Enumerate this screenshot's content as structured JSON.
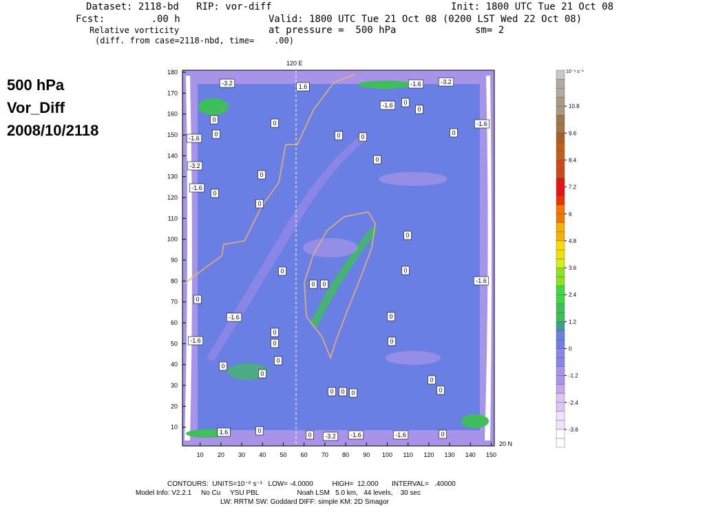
{
  "header": {
    "line1_left": "Dataset: 2118-bd   RIP: vor-diff",
    "line1_right": "Init: 1800 UTC Tue 21 Oct 08",
    "line2_left": "Fcst:        .00 h",
    "line2_right": "Valid: 1800 UTC Tue 21 Oct 08 (0200 LST Wed 22 Oct 08)",
    "line3_left": "Relative vorticity",
    "line3_mid": "at pressure =  500 hPa",
    "line3_right": "sm= 2",
    "line4": "(diff. from case=2118-nbd, time=    .00)"
  },
  "side_title": [
    "500 hPa",
    "Vor_Diff",
    "2008/10/2118"
  ],
  "chart_data": {
    "type": "contour",
    "xlim": [
      1.5,
      151.5
    ],
    "ylim": [
      1,
      181
    ],
    "xticks": [
      10,
      20,
      30,
      40,
      50,
      60,
      70,
      80,
      90,
      100,
      110,
      120,
      130,
      140,
      150
    ],
    "yticks": [
      10,
      20,
      30,
      40,
      50,
      60,
      70,
      80,
      90,
      100,
      110,
      120,
      130,
      140,
      150,
      160,
      170,
      180
    ],
    "meridian_label": "120 E",
    "parallel_label": "20 N",
    "contour_labels": [
      "-3.2",
      "1.6",
      "-1.6",
      "-3.2",
      "-1.6",
      "0",
      "0",
      "0",
      "0",
      "-1.6",
      "-1.6",
      "0",
      "0",
      "0",
      "0",
      "-3.2",
      "0",
      "0",
      "-1.6",
      "0",
      "0",
      "0",
      "0",
      "0",
      "-1.6",
      "0",
      "0",
      "0",
      "0",
      "-1.6",
      "0",
      "0",
      "-1.6",
      "0",
      "0",
      "0",
      "0",
      "0",
      "0",
      "0",
      "0",
      "0",
      "1.6",
      "0",
      "0",
      "-3.2",
      "-1.6",
      "-1.6",
      "0"
    ],
    "colorbar": {
      "unit": "10⁻⁶ s⁻¹",
      "lim": [
        -4.4,
        12.4
      ],
      "step": 0.4,
      "ticks": [
        10.8,
        9.6,
        8.4,
        7.2,
        6,
        4.8,
        3.6,
        2.4,
        1.2,
        0,
        -1.2,
        -2.4,
        -3.6
      ],
      "colors": [
        "#ffffff",
        "#f0e4fb",
        "#dcc4f4",
        "#c3a6ee",
        "#a794e8",
        "#8a86e6",
        "#6c7fe4",
        "#3e9e8a",
        "#3fbf5a",
        "#40d840",
        "#8ee020",
        "#d8ee10",
        "#f4e000",
        "#f6b000",
        "#f07800",
        "#f03000",
        "#e81010",
        "#d04818",
        "#c06018",
        "#a86020",
        "#a07848",
        "#a89a80",
        "#b0aaa0",
        "#c8c8c8"
      ]
    }
  },
  "footer": [
    "CONTOURS:  UNITS=10⁻⁶ s⁻¹   LOW= -4.0000          HIGH=  12.000       INTERVAL=   .40000",
    "Model Info: V2.2.1     No Cu     YSU PBL                    Noah LSM   5.0 km,   44 levels,    30 sec",
    "LW: RRTM SW: Goddard DIFF: simple KM: 2D Smagor"
  ]
}
